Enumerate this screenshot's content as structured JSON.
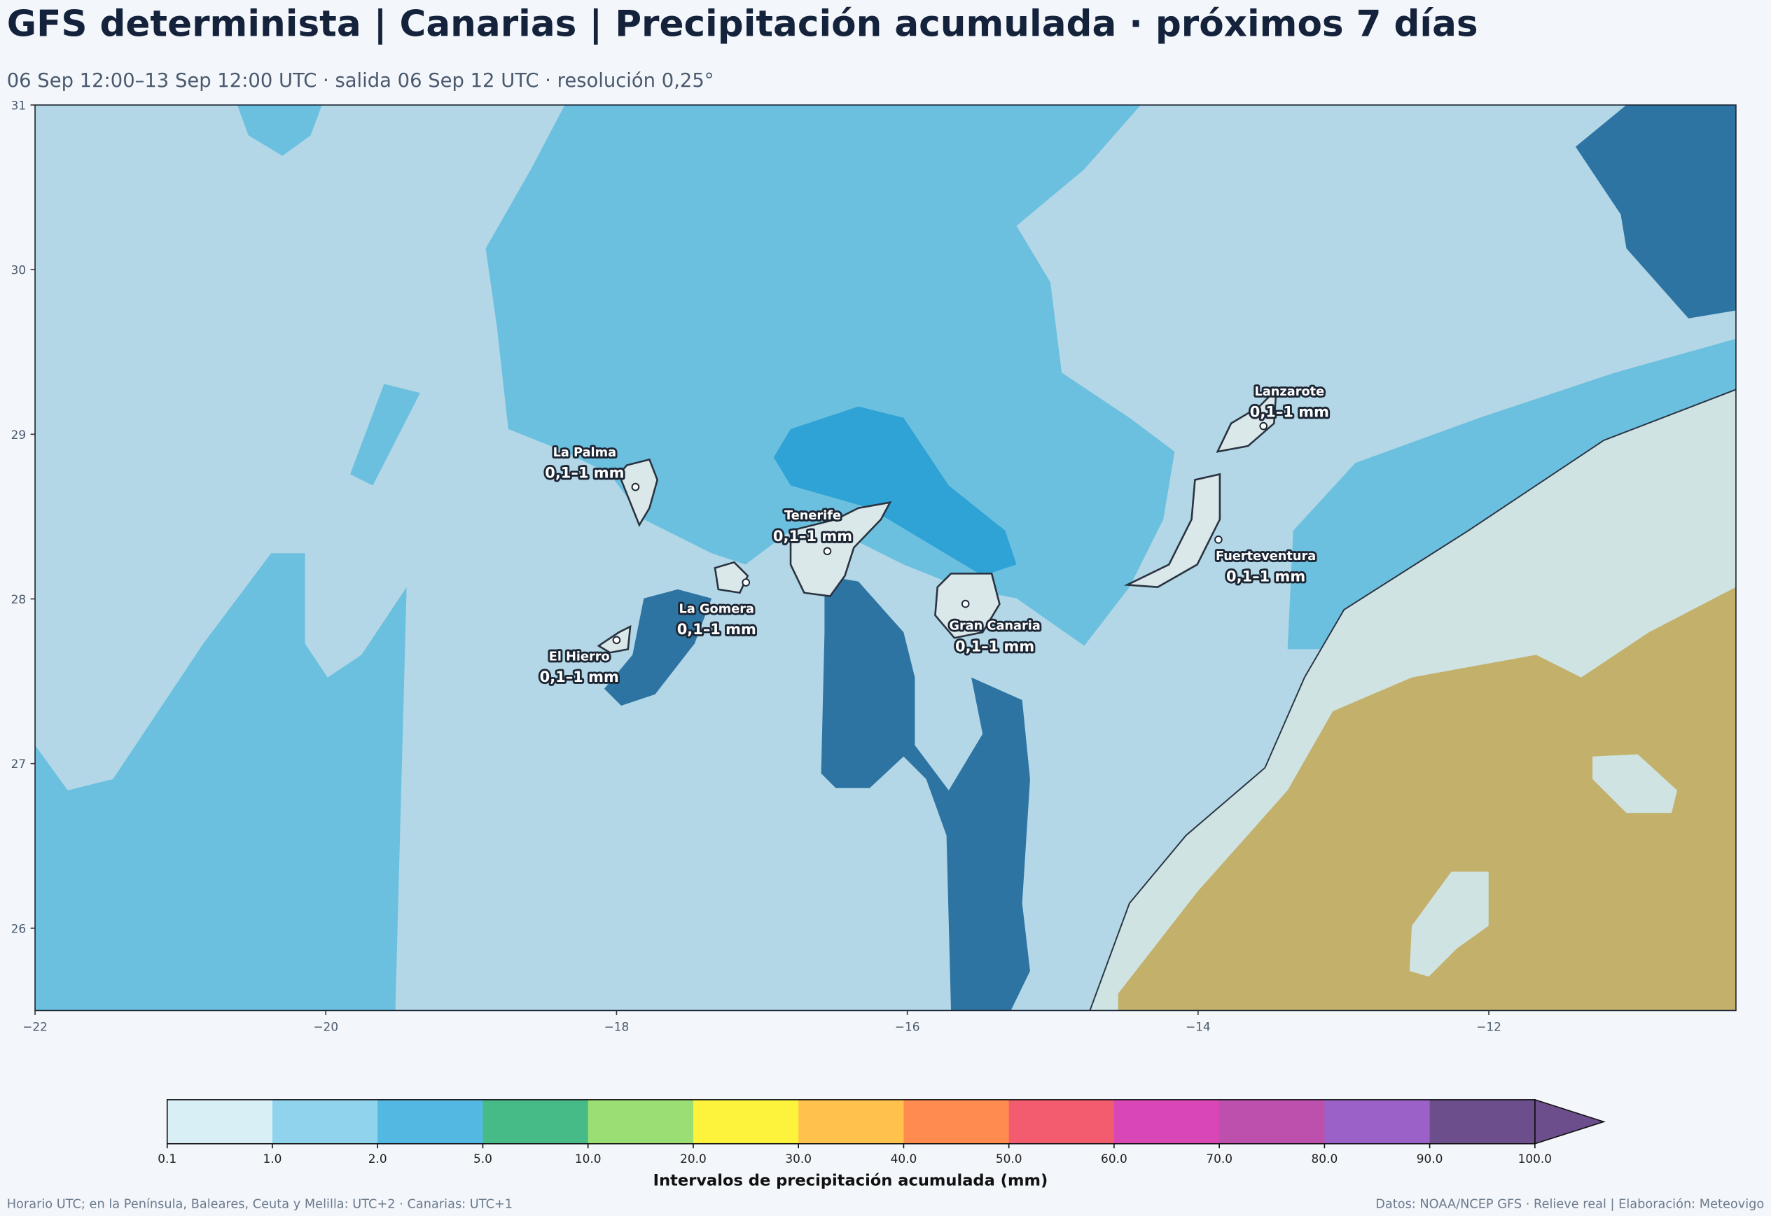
{
  "header": {
    "title": "GFS determinista | Canarias | Precipitación acumulada · próximos 7 días",
    "subtitle": "06 Sep 12:00–13 Sep 12:00 UTC · salida 06 Sep 12 UTC · resolución 0,25°"
  },
  "map": {
    "xlim": [
      -22,
      -10.3
    ],
    "ylim": [
      25.5,
      31
    ],
    "xticks": [
      {
        "value": -22,
        "label": "−22"
      },
      {
        "value": -20,
        "label": "−20"
      },
      {
        "value": -18,
        "label": "−18"
      },
      {
        "value": -16,
        "label": "−16"
      },
      {
        "value": -14,
        "label": "−14"
      },
      {
        "value": -12,
        "label": "−12"
      }
    ],
    "yticks": [
      26,
      27,
      28,
      29,
      30,
      31
    ]
  },
  "islands": [
    {
      "name": "La Palma",
      "label": "0,1–1 mm",
      "lon": -17.87,
      "lat": 28.68
    },
    {
      "name": "Tenerife",
      "label": "0,1–1 mm",
      "lon": -16.55,
      "lat": 28.29
    },
    {
      "name": "La Gomera",
      "label": "0,1–1 mm",
      "lon": -17.11,
      "lat": 28.1
    },
    {
      "name": "El Hierro",
      "label": "0,1–1 mm",
      "lon": -18.0,
      "lat": 27.75
    },
    {
      "name": "Gran Canaria",
      "label": "0,1–1 mm",
      "lon": -15.6,
      "lat": 27.97
    },
    {
      "name": "Fuerteventura",
      "label": "0,1–1 mm",
      "lon": -13.86,
      "lat": 28.36
    },
    {
      "name": "Lanzarote",
      "label": "0,1–1 mm",
      "lon": -13.55,
      "lat": 29.05
    }
  ],
  "colorbar": {
    "label": "Intervalos de precipitación acumulada (mm)",
    "bounds": [
      0.1,
      {
        "value": 1,
        "label": "1.0"
      },
      {
        "value": 2,
        "label": "2.0"
      },
      {
        "value": 5,
        "label": "5.0"
      },
      {
        "value": 10,
        "label": "10.0"
      },
      {
        "value": 20,
        "label": "20.0"
      },
      {
        "value": 30,
        "label": "30.0"
      },
      {
        "value": 40,
        "label": "40.0"
      },
      {
        "value": 50,
        "label": "50.0"
      },
      {
        "value": 60,
        "label": "60.0"
      },
      {
        "value": 70,
        "label": "70.0"
      },
      {
        "value": 80,
        "label": "80.0"
      },
      {
        "value": 90,
        "label": "90.0"
      },
      {
        "value": 100,
        "label": "100.0"
      }
    ],
    "colors": [
      "#d9eff6",
      "#8fd4ec",
      "#53b9e2",
      "#46bb88",
      "#9bde74",
      "#fdf23c",
      "#ffc24c",
      "#ff8c4e",
      "#f25c6e",
      "#d946b5",
      "#bd4fad",
      "#9b61c8",
      "#6c4e8d"
    ],
    "extend_color": "#6c4e8d"
  },
  "footer": {
    "left": "Horario UTC; en la Península, Baleares, Ceuta y Melilla: UTC+2 · Canarias: UTC+1",
    "right": "Datos: NOAA/NCEP GFS · Relieve real | Elaboración: Meteovigo"
  }
}
